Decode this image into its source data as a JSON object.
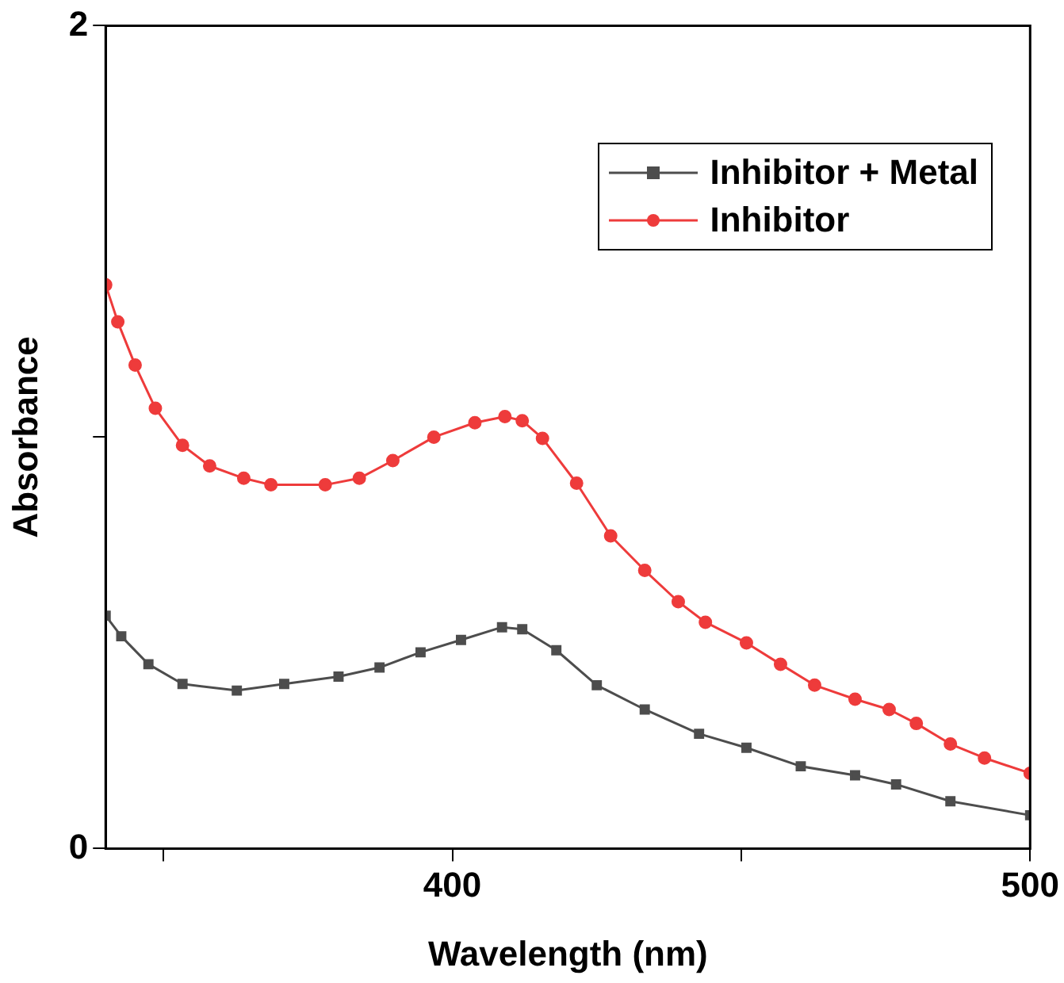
{
  "chart_data": {
    "type": "line",
    "xlabel": "Wavelength (nm)",
    "ylabel": "Absorbance",
    "xlim": [
      340,
      500
    ],
    "xticks": [
      {
        "value": 350,
        "label": null
      },
      400,
      {
        "value": 450,
        "label": null
      },
      500
    ],
    "ylim": [
      0,
      2
    ],
    "yticks": [
      0,
      {
        "value": 1,
        "label": null
      },
      2
    ],
    "grid": false,
    "legend": "top right",
    "line_style": "solid",
    "series": [
      {
        "name": "Inhibitor + Metal",
        "color": "#4d4d4d",
        "marker": "square",
        "x": [
          340,
          342.7,
          347.4,
          353.3,
          362.7,
          370.9,
          380.3,
          387.4,
          394.5,
          401.5,
          408.6,
          412.1,
          418,
          425,
          433.3,
          442.7,
          450.9,
          460.3,
          469.7,
          476.8,
          486.2,
          500
        ],
        "values": [
          0.566,
          0.516,
          0.448,
          0.4,
          0.384,
          0.4,
          0.418,
          0.44,
          0.477,
          0.507,
          0.538,
          0.533,
          0.482,
          0.397,
          0.338,
          0.279,
          0.245,
          0.2,
          0.178,
          0.156,
          0.115,
          0.081
        ]
      },
      {
        "name": "Inhibitor",
        "color": "#ee3b3b",
        "marker": "circle",
        "x": [
          340,
          342.1,
          345.1,
          348.6,
          353.3,
          358,
          363.9,
          368.6,
          378,
          383.9,
          389.7,
          396.8,
          403.9,
          409.1,
          412.1,
          415.6,
          421.5,
          427.4,
          433.3,
          439.1,
          443.8,
          450.9,
          456.8,
          462.7,
          469.7,
          475.6,
          480.3,
          486.2,
          492.1,
          500
        ],
        "values": [
          1.37,
          1.28,
          1.175,
          1.07,
          0.98,
          0.93,
          0.9,
          0.884,
          0.884,
          0.9,
          0.943,
          1.0,
          1.035,
          1.05,
          1.04,
          0.997,
          0.888,
          0.76,
          0.676,
          0.6,
          0.55,
          0.5,
          0.448,
          0.397,
          0.363,
          0.338,
          0.304,
          0.254,
          0.22,
          0.183
        ]
      }
    ]
  }
}
